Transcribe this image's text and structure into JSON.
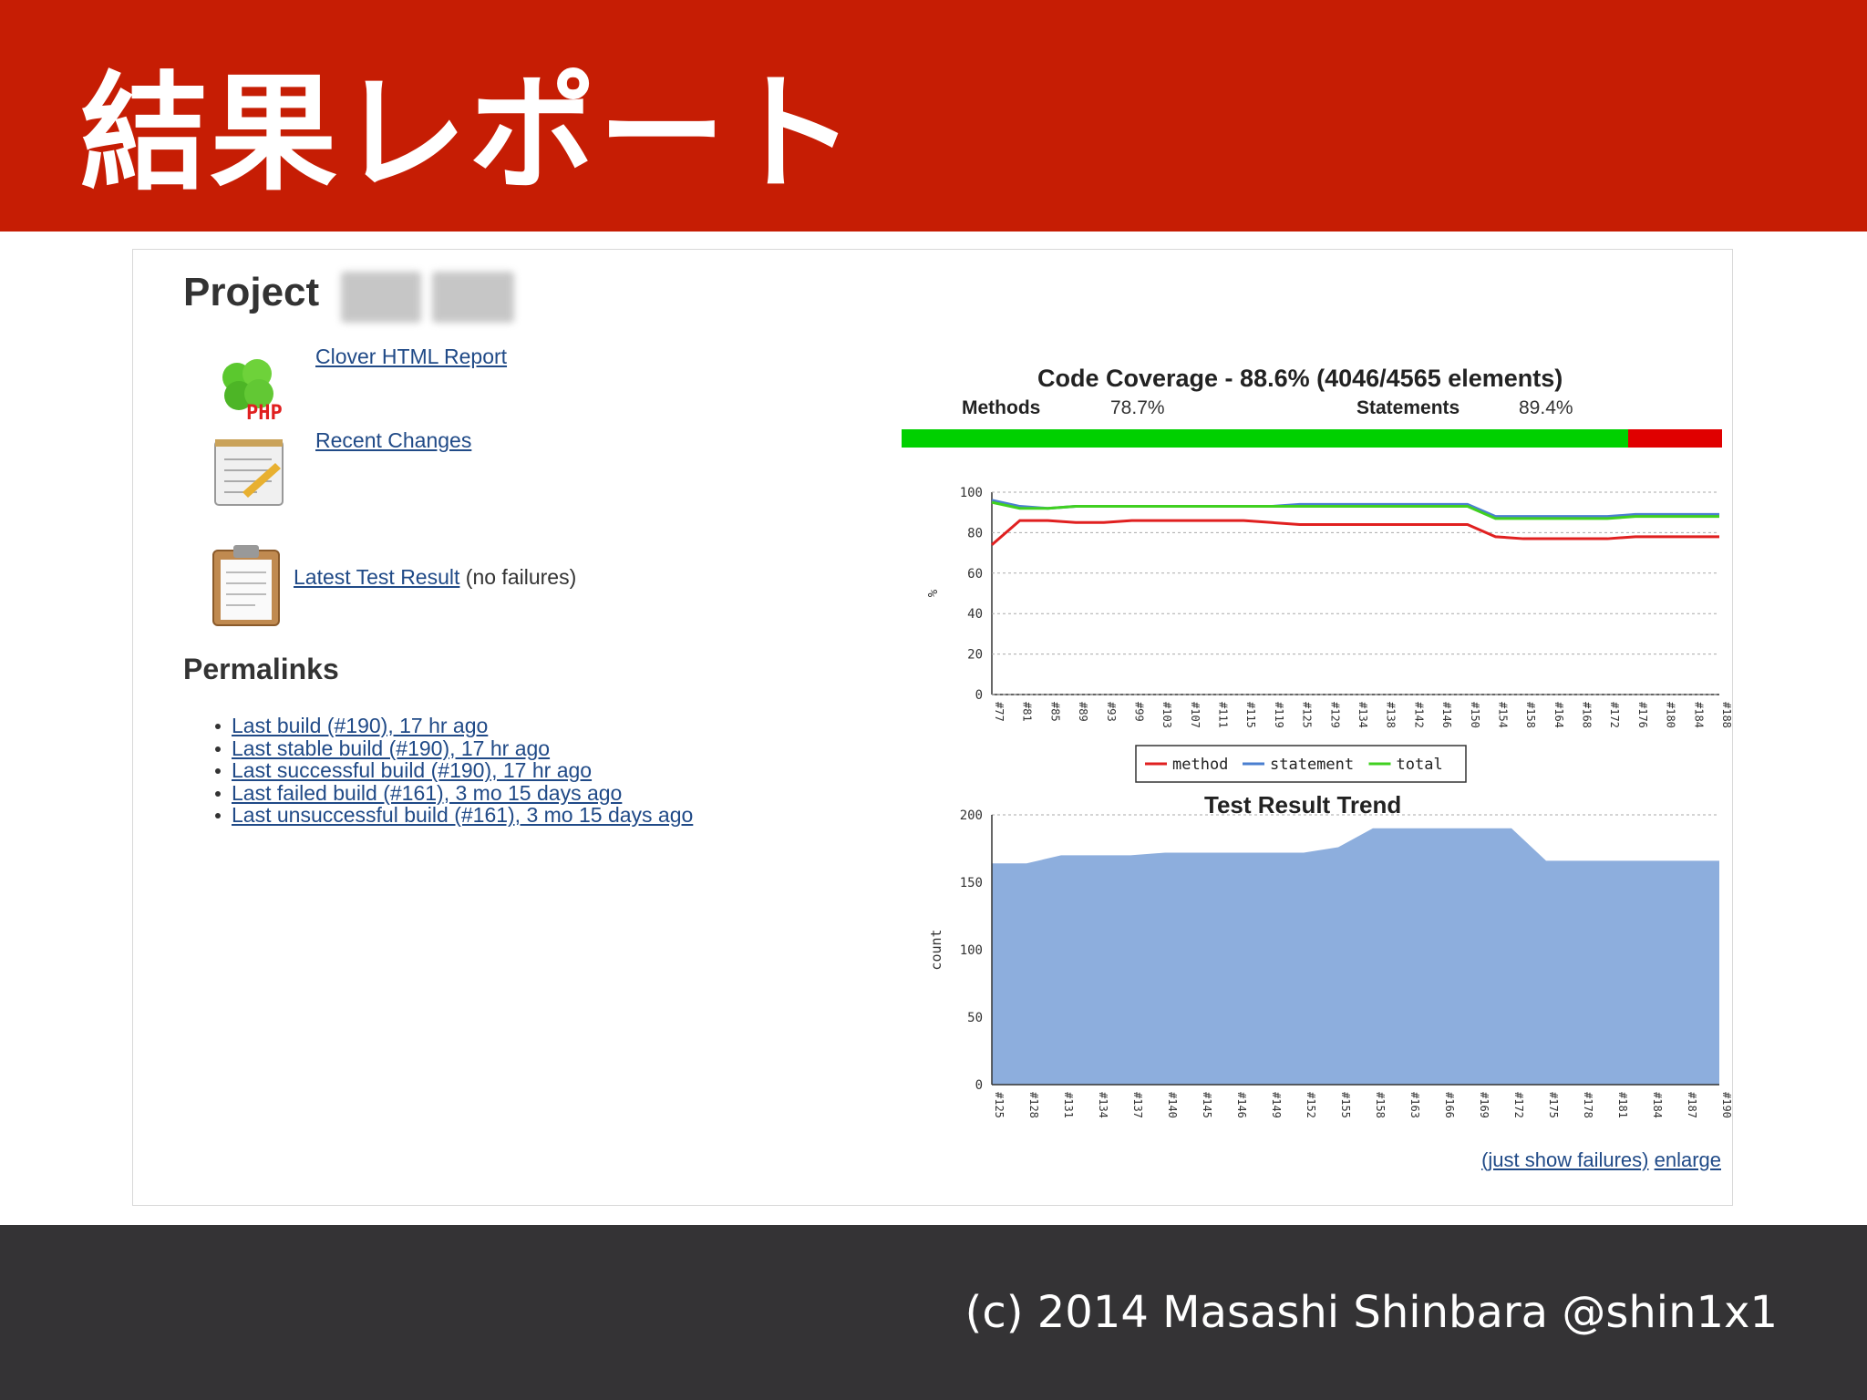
{
  "slide": {
    "title": "結果レポート",
    "footer": "(c) 2014 Masashi Shinbara @shin1x1"
  },
  "project": {
    "title": "Project"
  },
  "links": {
    "clover": "Clover HTML Report",
    "recent": "Recent Changes",
    "latest_test": "Latest Test Result",
    "latest_test_suffix": "(no failures)",
    "php_badge": "PHP"
  },
  "permalinks": {
    "heading": "Permalinks",
    "items": [
      "Last build (#190), 17 hr ago",
      "Last stable build (#190), 17 hr ago",
      "Last successful build (#190), 17 hr ago",
      "Last failed build (#161), 3 mo 15 days ago",
      "Last unsuccessful build (#161), 3 mo 15 days ago"
    ]
  },
  "coverage": {
    "title": "Code Coverage - 88.6% (4046/4565 elements)",
    "methods_label": "Methods",
    "methods_value": "78.7%",
    "statements_label": "Statements",
    "statements_value": "89.4%",
    "green_fraction": 0.886,
    "colors": {
      "covered": "#00d000",
      "uncovered": "#e00000"
    }
  },
  "trend": {
    "title": "Test Result Trend",
    "just_show_failures": "(just show failures)",
    "enlarge": "enlarge"
  },
  "chart_data": [
    {
      "type": "line",
      "title": "",
      "xlabel": "",
      "ylabel": "%",
      "ylim": [
        0,
        100
      ],
      "yticks": [
        0,
        20,
        40,
        60,
        80,
        100
      ],
      "grid": true,
      "legend_position": "bottom",
      "x": [
        "#77",
        "#81",
        "#85",
        "#89",
        "#93",
        "#99",
        "#103",
        "#107",
        "#111",
        "#115",
        "#119",
        "#125",
        "#129",
        "#134",
        "#138",
        "#142",
        "#146",
        "#150",
        "#154",
        "#158",
        "#164",
        "#168",
        "#172",
        "#176",
        "#180",
        "#184",
        "#188"
      ],
      "series": [
        {
          "name": "method",
          "color": "#e02020",
          "values": [
            74,
            86,
            86,
            85,
            85,
            86,
            86,
            86,
            86,
            86,
            85,
            84,
            84,
            84,
            84,
            84,
            84,
            84,
            78,
            77,
            77,
            77,
            77,
            78,
            78,
            78,
            78
          ]
        },
        {
          "name": "statement",
          "color": "#4a7fd0",
          "values": [
            96,
            93,
            92,
            93,
            93,
            93,
            93,
            93,
            93,
            93,
            93,
            94,
            94,
            94,
            94,
            94,
            94,
            94,
            88,
            88,
            88,
            88,
            88,
            89,
            89,
            89,
            89
          ]
        },
        {
          "name": "total",
          "color": "#40d020",
          "values": [
            95,
            92,
            92,
            93,
            93,
            93,
            93,
            93,
            93,
            93,
            93,
            93,
            93,
            93,
            93,
            93,
            93,
            93,
            87,
            87,
            87,
            87,
            87,
            88,
            88,
            88,
            88
          ]
        }
      ]
    },
    {
      "type": "area",
      "title": "Test Result Trend",
      "xlabel": "",
      "ylabel": "count",
      "ylim": [
        0,
        200
      ],
      "yticks": [
        0,
        50,
        100,
        150,
        200
      ],
      "grid": true,
      "x": [
        "#125",
        "#128",
        "#131",
        "#134",
        "#137",
        "#140",
        "#145",
        "#146",
        "#149",
        "#152",
        "#155",
        "#158",
        "#163",
        "#166",
        "#169",
        "#172",
        "#175",
        "#178",
        "#181",
        "#184",
        "#187",
        "#190"
      ],
      "series": [
        {
          "name": "",
          "color": "#8daedd",
          "values": [
            164,
            164,
            170,
            170,
            170,
            172,
            172,
            172,
            172,
            172,
            176,
            190,
            190,
            190,
            190,
            190,
            166,
            166,
            166,
            166,
            166,
            166
          ]
        }
      ]
    }
  ]
}
